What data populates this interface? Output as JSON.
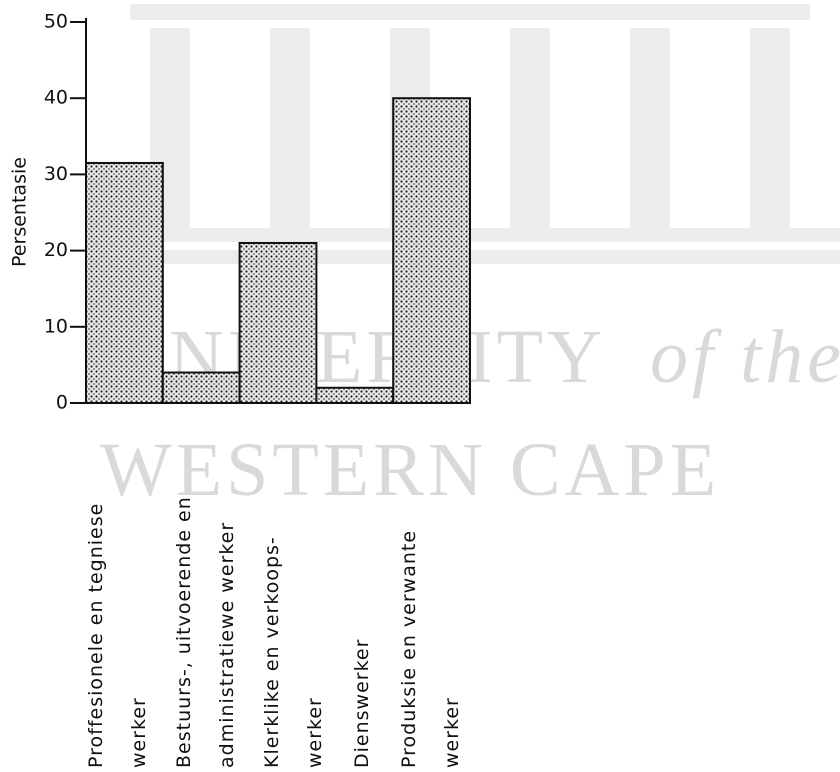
{
  "watermark": [
    "UNIVERSITY",
    "of the",
    "WESTERN CAPE"
  ],
  "chart_data": {
    "type": "bar",
    "ylabel": "Persentasie",
    "categories": [
      "Proffesionele en tegniese\nwerker",
      "Bestuurs-, uitvoerende en\nadministratiewe werker",
      "Klerklike en verkoops-\nwerker",
      "Dienswerker",
      "Produksie en verwante\nwerker"
    ],
    "values": [
      31.5,
      4,
      21,
      2,
      40
    ],
    "ylim": [
      0,
      50
    ],
    "yticks": [
      0,
      10,
      20,
      30,
      40,
      50
    ]
  }
}
